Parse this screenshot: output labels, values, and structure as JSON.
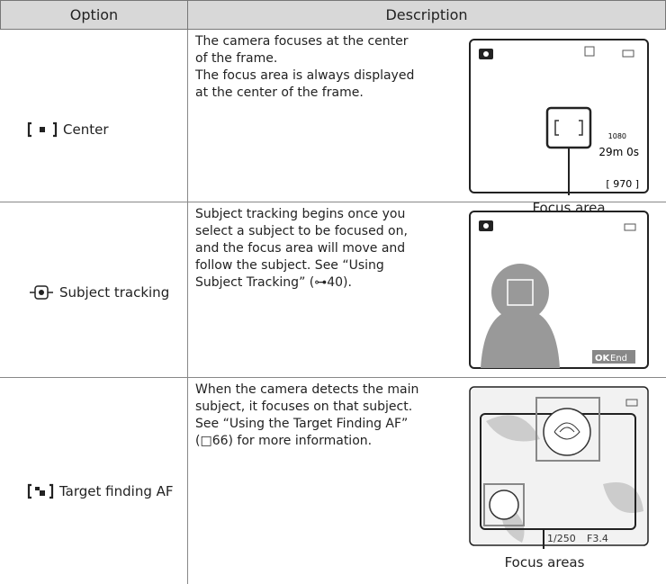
{
  "header": {
    "option": "Option",
    "description": "Description"
  },
  "rows": [
    {
      "option": "Center",
      "lines": [
        "The camera focuses at the center",
        "of the frame.",
        "The focus area is always displayed",
        "at the center of the frame."
      ],
      "caption": "Focus area",
      "screen_text": [
        "1080",
        "29m 0s",
        "[ 970 ]"
      ]
    },
    {
      "option": "Subject tracking",
      "lines": [
        "Subject tracking begins once you",
        "select a subject to be focused on,",
        "and the focus area will move and",
        "follow the subject. See “Using",
        "Subject Tracking” (⊶40)."
      ],
      "screen_text": [
        "OK",
        "End"
      ]
    },
    {
      "option": "Target finding AF",
      "lines": [
        "When the camera detects the main",
        "subject, it focuses on that subject.",
        "See “Using the Target Finding AF”",
        "(□66) for more information."
      ],
      "caption": "Focus areas",
      "screen_text": [
        "1/250",
        "F3.4"
      ]
    }
  ]
}
